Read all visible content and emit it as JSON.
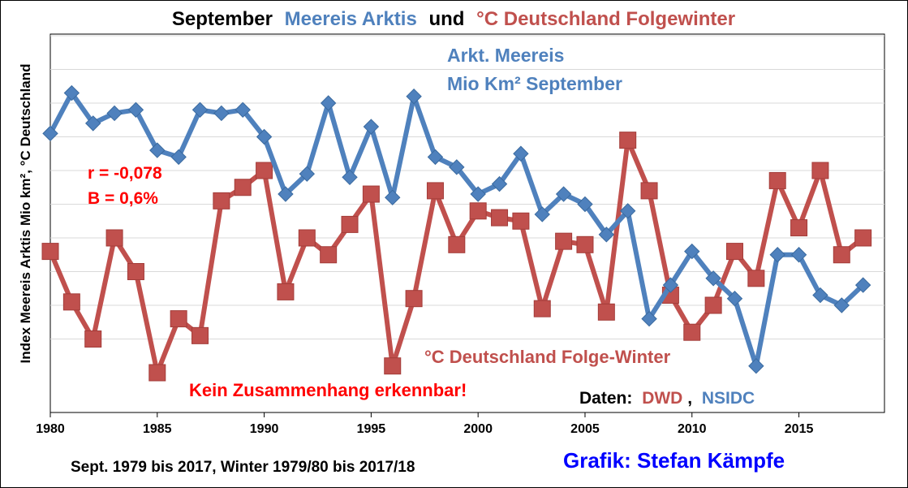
{
  "chart_data": {
    "type": "line",
    "title_parts": [
      {
        "text": "September",
        "color": "#000000"
      },
      {
        "text": "Meereis Arktis",
        "color": "#4f81bd"
      },
      {
        "text": "und",
        "color": "#000000"
      },
      {
        "text": "°C Deutschland Folgewinter",
        "color": "#c0504d"
      }
    ],
    "ylabel": "Index Meereis Arktis Mio km², °C Deutschland",
    "xlabel": "Sept. 1979 bis 2017, Winter 1979/80 bis 2017/18",
    "x_ticks": [
      1980,
      1985,
      1990,
      1995,
      2000,
      2005,
      2010,
      2015
    ],
    "xlim": [
      1980,
      2019
    ],
    "ylim": [
      0,
      10
    ],
    "grid": true,
    "x": [
      1980,
      1981,
      1982,
      1983,
      1984,
      1985,
      1986,
      1987,
      1988,
      1989,
      1990,
      1991,
      1992,
      1993,
      1994,
      1995,
      1996,
      1997,
      1998,
      1999,
      2000,
      2001,
      2002,
      2003,
      2004,
      2005,
      2006,
      2007,
      2008,
      2009,
      2010,
      2011,
      2012,
      2013,
      2014,
      2015,
      2016,
      2017,
      2018
    ],
    "series": [
      {
        "name": "Arkt. Meereis Mio Km² September",
        "color": "#4f81bd",
        "marker": "diamond",
        "values": [
          7.1,
          8.3,
          7.4,
          7.7,
          7.8,
          6.6,
          6.4,
          7.8,
          7.7,
          7.8,
          7.0,
          5.3,
          5.9,
          8.0,
          5.8,
          7.3,
          5.2,
          8.2,
          6.4,
          6.1,
          5.3,
          5.6,
          6.5,
          4.7,
          5.3,
          5.0,
          4.1,
          4.8,
          1.6,
          2.6,
          3.6,
          2.8,
          2.2,
          0.2,
          3.5,
          3.5,
          2.3,
          2.0,
          2.6
        ]
      },
      {
        "name": "°C Deutschland Folge-Winter",
        "color": "#c0504d",
        "marker": "square",
        "values": [
          3.6,
          2.1,
          1.0,
          4.0,
          3.0,
          0.0,
          1.6,
          1.1,
          5.1,
          5.5,
          6.0,
          2.4,
          4.0,
          3.5,
          4.4,
          5.3,
          0.2,
          2.2,
          5.4,
          3.8,
          4.8,
          4.6,
          4.5,
          1.9,
          3.9,
          3.8,
          1.8,
          6.9,
          5.4,
          2.3,
          1.2,
          2.0,
          3.6,
          2.8,
          5.7,
          4.3,
          6.0,
          3.5,
          4.0
        ]
      }
    ],
    "legend": {
      "sea_ice_line1": "Arkt. Meereis",
      "sea_ice_line2": "Mio Km² September",
      "temp": "°C Deutschland Folge-Winter"
    },
    "annotations": {
      "r": "r = -0,078",
      "b": "B = 0,6%",
      "no_correlation": "Kein Zusammenhang erkennbar!",
      "sources_prefix": "Daten:",
      "dwd": "DWD",
      "comma": ",",
      "nsidc": "NSIDC",
      "credit": "Grafik: Stefan Kämpfe"
    },
    "colors": {
      "blue": "#4f81bd",
      "red": "#c0504d",
      "annotation_red": "#ff0000",
      "credit_blue": "#0000ff",
      "grid": "#d9d9d9"
    }
  }
}
